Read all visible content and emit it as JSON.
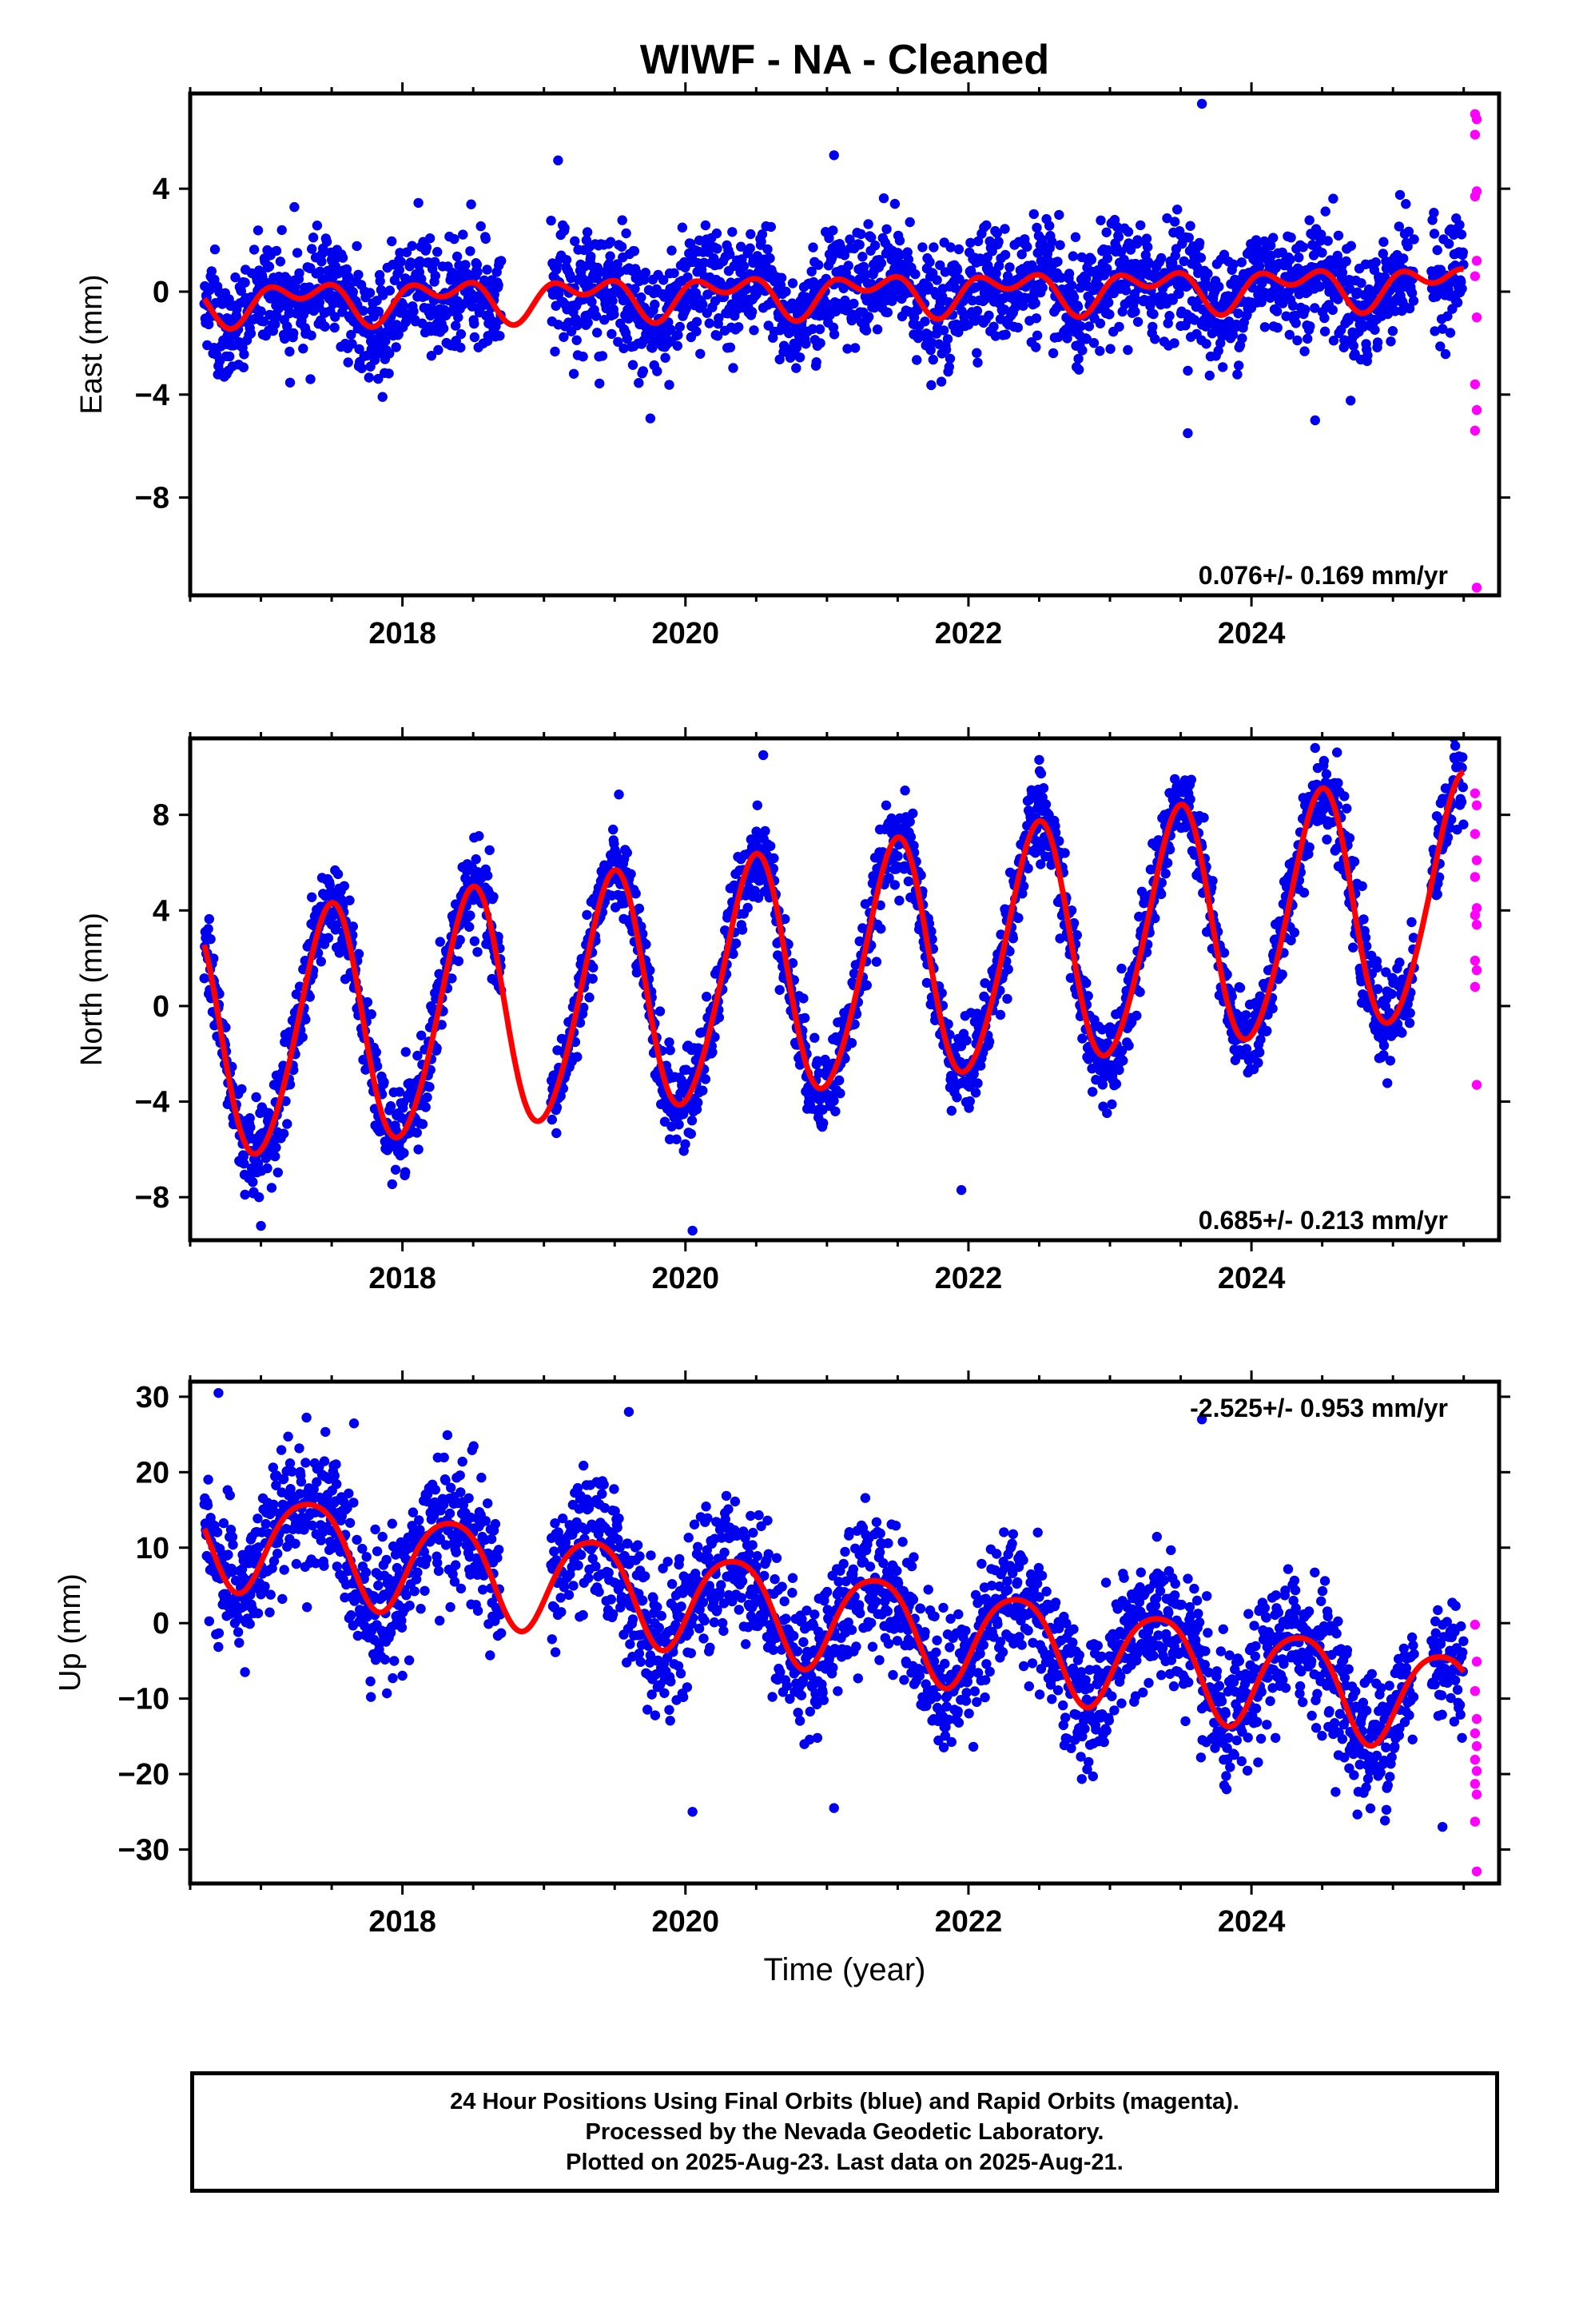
{
  "title": "WIWF  - NA - Cleaned",
  "xlabel": "Time (year)",
  "caption": [
    "24 Hour Positions Using Final Orbits (blue) and Rapid Orbits (magenta).",
    "Processed by the Nevada Geodetic Laboratory.",
    "Plotted on 2025-Aug-23. Last data on 2025-Aug-21."
  ],
  "colors": {
    "final": "#0000ee",
    "rapid": "#ff00ff",
    "fit": "#ff0000",
    "axis": "#000000"
  },
  "chart_data": [
    {
      "type": "scatter",
      "component": "east",
      "ylabel": "East (mm)",
      "rate_label": "0.076+/- 0.169 mm/yr",
      "xlim": [
        2016.5,
        2025.75
      ],
      "ylim": [
        -11.8,
        7.7
      ],
      "xticks": [
        2018,
        2020,
        2022,
        2024
      ],
      "yticks": [
        -8,
        -4,
        0,
        4
      ],
      "final_range": [
        2016.6,
        2025.5
      ],
      "gaps": [
        [
          2018.7,
          2019.05
        ],
        [
          2025.15,
          2025.27
        ]
      ],
      "noise_sd": 1.1,
      "trend": {
        "rate": 0.076,
        "ref_year": 2016.6,
        "offset": -0.4,
        "annual": [
          0.55,
          -0.15
        ],
        "semiannual": [
          0.2,
          0.45
        ]
      },
      "rapid_values": [
        6.9,
        6.7,
        6.1,
        3.9,
        3.7,
        1.2,
        0.6,
        -1.0,
        -3.6,
        -4.6,
        -5.4,
        -11.5
      ],
      "outliers": [
        [
          2023.65,
          7.3
        ],
        [
          2019.1,
          5.1
        ],
        [
          2021.05,
          5.3
        ],
        [
          2023.55,
          -5.5
        ],
        [
          2017.35,
          -3.4
        ],
        [
          2024.45,
          -5.0
        ]
      ],
      "series": [
        {
          "name": "Final Orbits (blue)",
          "role": "final"
        },
        {
          "name": "Rapid Orbits (magenta)",
          "role": "rapid"
        }
      ]
    },
    {
      "type": "scatter",
      "component": "north",
      "ylabel": "North (mm)",
      "rate_label": "0.685+/- 0.213 mm/yr",
      "xlim": [
        2016.5,
        2025.75
      ],
      "ylim": [
        -9.8,
        11.2
      ],
      "xticks": [
        2018,
        2020,
        2022,
        2024
      ],
      "yticks": [
        -8,
        -4,
        0,
        4,
        8
      ],
      "final_range": [
        2016.6,
        2025.5
      ],
      "gaps": [
        [
          2018.7,
          2019.05
        ],
        [
          2025.15,
          2025.27
        ]
      ],
      "noise_sd": 0.9,
      "trend": {
        "rate": 0.685,
        "ref_year": 2016.6,
        "offset": -1.6,
        "annual": [
          0.45,
          -5.0
        ],
        "semiannual": [
          0.3,
          0.3
        ]
      },
      "rapid_values": [
        8.9,
        8.4,
        7.2,
        6.1,
        5.4,
        4.1,
        3.8,
        3.4,
        1.9,
        1.5,
        0.8,
        -3.3
      ],
      "outliers": [
        [
          2020.55,
          10.5
        ],
        [
          2024.45,
          10.8
        ],
        [
          2022.5,
          10.3
        ],
        [
          2020.05,
          -9.4
        ],
        [
          2017.0,
          -9.2
        ],
        [
          2021.95,
          -7.7
        ]
      ],
      "series": [
        {
          "name": "Final Orbits (blue)",
          "role": "final"
        },
        {
          "name": "Rapid Orbits (magenta)",
          "role": "rapid"
        }
      ]
    },
    {
      "type": "scatter",
      "component": "up",
      "ylabel": "Up (mm)",
      "rate_label": "-2.525+/- 0.953 mm/yr",
      "xlim": [
        2016.5,
        2025.75
      ],
      "ylim": [
        -34.5,
        32.0
      ],
      "xticks": [
        2018,
        2020,
        2022,
        2024
      ],
      "yticks": [
        -30,
        -20,
        -10,
        0,
        10,
        20,
        30
      ],
      "final_range": [
        2016.6,
        2025.5
      ],
      "gaps": [
        [
          2018.7,
          2019.05
        ],
        [
          2025.15,
          2025.27
        ]
      ],
      "noise_sd": 4.5,
      "trend": {
        "rate": -2.525,
        "ref_year": 2016.6,
        "offset": 12.0,
        "annual": [
          5.5,
          -3.5
        ],
        "semiannual": [
          0.8,
          0.5
        ]
      },
      "rapid_values": [
        -0.2,
        -5.1,
        -9.0,
        -12.7,
        -14.6,
        -16.3,
        -18.1,
        -19.6,
        -21.3,
        -22.7,
        -26.3,
        -32.9
      ],
      "outliers": [
        [
          2016.7,
          30.5
        ],
        [
          2019.6,
          28.0
        ],
        [
          2023.65,
          27.0
        ],
        [
          2020.05,
          -25.0
        ],
        [
          2021.05,
          -24.5
        ],
        [
          2025.35,
          -27.0
        ]
      ],
      "series": [
        {
          "name": "Final Orbits (blue)",
          "role": "final"
        },
        {
          "name": "Rapid Orbits (magenta)",
          "role": "rapid"
        }
      ]
    }
  ]
}
